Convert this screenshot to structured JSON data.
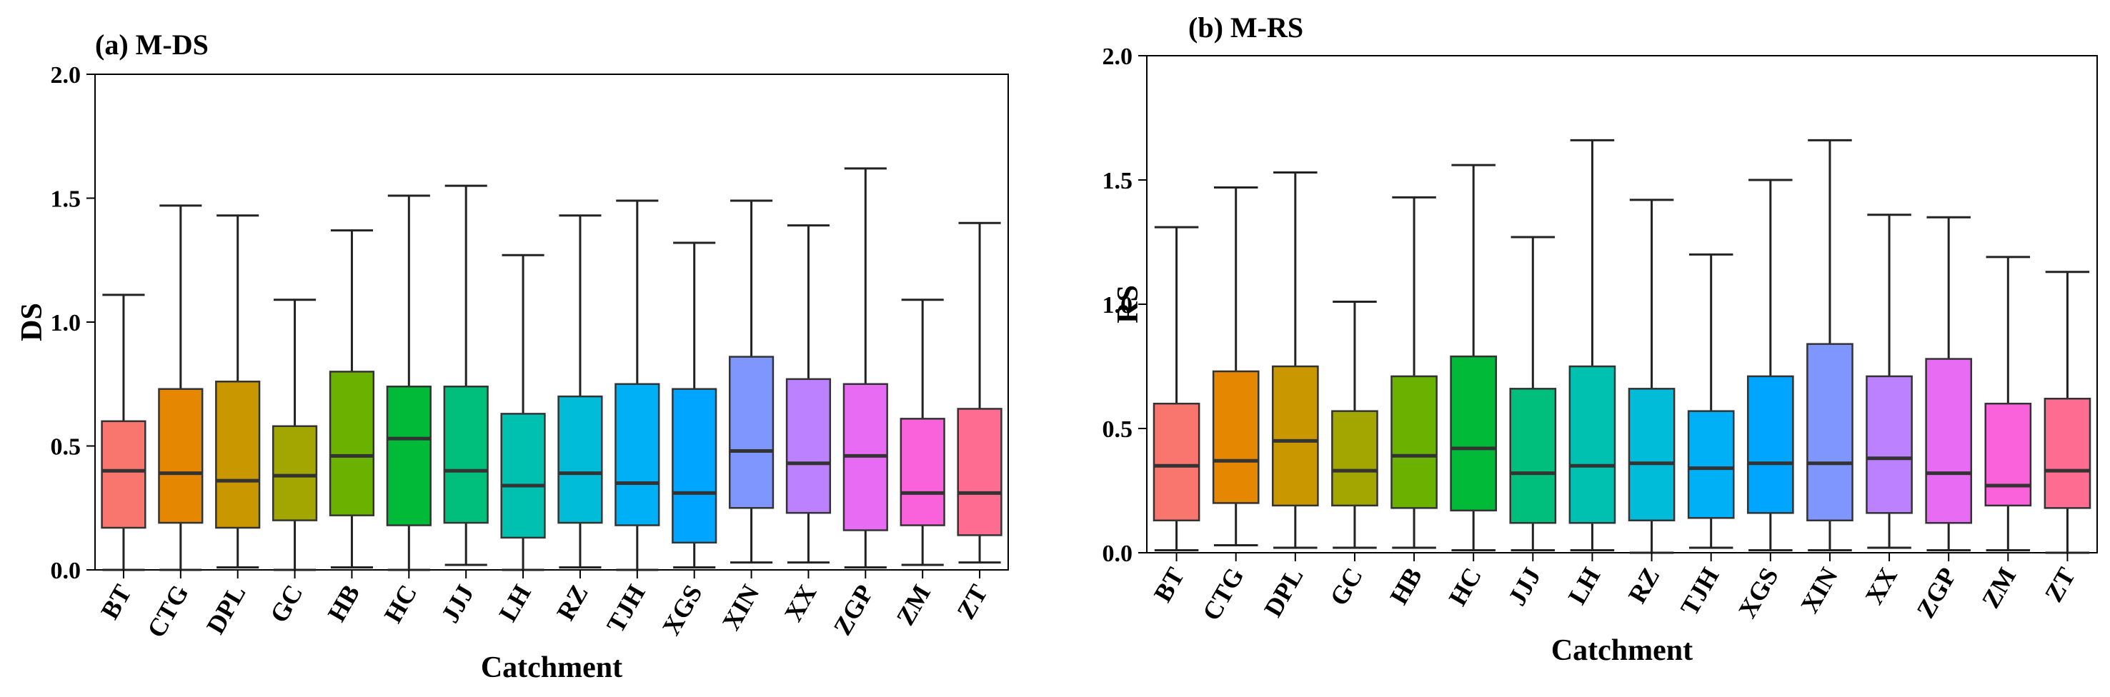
{
  "chart_data": [
    {
      "type": "box",
      "title": "(a) M-DS",
      "xlabel": "Catchment",
      "ylabel": "DS",
      "ylim": [
        0,
        2.0
      ],
      "yticks": [
        "0.0",
        "0.5",
        "1.0",
        "1.5",
        "2.0"
      ],
      "categories": [
        "BT",
        "CTG",
        "DPL",
        "GC",
        "HB",
        "HC",
        "JJJ",
        "LH",
        "RZ",
        "TJH",
        "XGS",
        "XIN",
        "XX",
        "ZGP",
        "ZM",
        "ZT"
      ],
      "colors": [
        "#F8766D",
        "#E58700",
        "#C99800",
        "#A3A500",
        "#6BB100",
        "#00BA38",
        "#00BF7D",
        "#00C0AF",
        "#00BCD8",
        "#00B0F6",
        "#00A5FF",
        "#7F96FF",
        "#BC81FF",
        "#E76BF3",
        "#FA62DB",
        "#FF6C91"
      ],
      "boxes": [
        {
          "min": 0.0,
          "q1": 0.17,
          "median": 0.4,
          "q3": 0.6,
          "max": 1.11
        },
        {
          "min": 0.0,
          "q1": 0.19,
          "median": 0.39,
          "q3": 0.73,
          "max": 1.47
        },
        {
          "min": 0.01,
          "q1": 0.17,
          "median": 0.36,
          "q3": 0.76,
          "max": 1.43
        },
        {
          "min": 0.0,
          "q1": 0.2,
          "median": 0.38,
          "q3": 0.58,
          "max": 1.09
        },
        {
          "min": 0.01,
          "q1": 0.22,
          "median": 0.46,
          "q3": 0.8,
          "max": 1.37
        },
        {
          "min": 0.0,
          "q1": 0.18,
          "median": 0.53,
          "q3": 0.74,
          "max": 1.51
        },
        {
          "min": 0.02,
          "q1": 0.19,
          "median": 0.4,
          "q3": 0.74,
          "max": 1.55
        },
        {
          "min": 0.0,
          "q1": 0.13,
          "median": 0.34,
          "q3": 0.63,
          "max": 1.27
        },
        {
          "min": 0.01,
          "q1": 0.19,
          "median": 0.39,
          "q3": 0.7,
          "max": 1.43
        },
        {
          "min": 0.0,
          "q1": 0.18,
          "median": 0.35,
          "q3": 0.75,
          "max": 1.49
        },
        {
          "min": 0.01,
          "q1": 0.11,
          "median": 0.31,
          "q3": 0.73,
          "max": 1.32
        },
        {
          "min": 0.03,
          "q1": 0.25,
          "median": 0.48,
          "q3": 0.86,
          "max": 1.49
        },
        {
          "min": 0.03,
          "q1": 0.23,
          "median": 0.43,
          "q3": 0.77,
          "max": 1.39
        },
        {
          "min": 0.01,
          "q1": 0.16,
          "median": 0.46,
          "q3": 0.75,
          "max": 1.62
        },
        {
          "min": 0.02,
          "q1": 0.18,
          "median": 0.31,
          "q3": 0.61,
          "max": 1.09
        },
        {
          "min": 0.03,
          "q1": 0.14,
          "median": 0.31,
          "q3": 0.65,
          "max": 1.4
        }
      ]
    },
    {
      "type": "box",
      "title": "(b) M-RS",
      "xlabel": "Catchment",
      "ylabel": "RS",
      "ylim": [
        0,
        2.0
      ],
      "yticks": [
        "0.0",
        "0.5",
        "1.0",
        "1.5",
        "2.0"
      ],
      "categories": [
        "BT",
        "CTG",
        "DPL",
        "GC",
        "HB",
        "HC",
        "JJJ",
        "LH",
        "RZ",
        "TJH",
        "XGS",
        "XIN",
        "XX",
        "ZGP",
        "ZM",
        "ZT"
      ],
      "colors": [
        "#F8766D",
        "#E58700",
        "#C99800",
        "#A3A500",
        "#6BB100",
        "#00BA38",
        "#00BF7D",
        "#00C0AF",
        "#00BCD8",
        "#00B0F6",
        "#00A5FF",
        "#7F96FF",
        "#BC81FF",
        "#E76BF3",
        "#FA62DB",
        "#FF6C91"
      ],
      "boxes": [
        {
          "min": 0.01,
          "q1": 0.13,
          "median": 0.35,
          "q3": 0.6,
          "max": 1.31
        },
        {
          "min": 0.03,
          "q1": 0.2,
          "median": 0.37,
          "q3": 0.73,
          "max": 1.47
        },
        {
          "min": 0.02,
          "q1": 0.19,
          "median": 0.45,
          "q3": 0.75,
          "max": 1.53
        },
        {
          "min": 0.02,
          "q1": 0.19,
          "median": 0.33,
          "q3": 0.57,
          "max": 1.01
        },
        {
          "min": 0.02,
          "q1": 0.18,
          "median": 0.39,
          "q3": 0.71,
          "max": 1.43
        },
        {
          "min": 0.01,
          "q1": 0.17,
          "median": 0.42,
          "q3": 0.79,
          "max": 1.56
        },
        {
          "min": 0.01,
          "q1": 0.12,
          "median": 0.32,
          "q3": 0.66,
          "max": 1.27
        },
        {
          "min": 0.01,
          "q1": 0.12,
          "median": 0.35,
          "q3": 0.75,
          "max": 1.66
        },
        {
          "min": 0.0,
          "q1": 0.13,
          "median": 0.36,
          "q3": 0.66,
          "max": 1.42
        },
        {
          "min": 0.02,
          "q1": 0.14,
          "median": 0.34,
          "q3": 0.57,
          "max": 1.2
        },
        {
          "min": 0.01,
          "q1": 0.16,
          "median": 0.36,
          "q3": 0.71,
          "max": 1.5
        },
        {
          "min": 0.01,
          "q1": 0.13,
          "median": 0.36,
          "q3": 0.84,
          "max": 1.66
        },
        {
          "min": 0.02,
          "q1": 0.16,
          "median": 0.38,
          "q3": 0.71,
          "max": 1.36
        },
        {
          "min": 0.01,
          "q1": 0.12,
          "median": 0.32,
          "q3": 0.78,
          "max": 1.35
        },
        {
          "min": 0.01,
          "q1": 0.19,
          "median": 0.27,
          "q3": 0.6,
          "max": 1.19
        },
        {
          "min": 0.0,
          "q1": 0.18,
          "median": 0.33,
          "q3": 0.62,
          "max": 1.13
        }
      ]
    }
  ]
}
